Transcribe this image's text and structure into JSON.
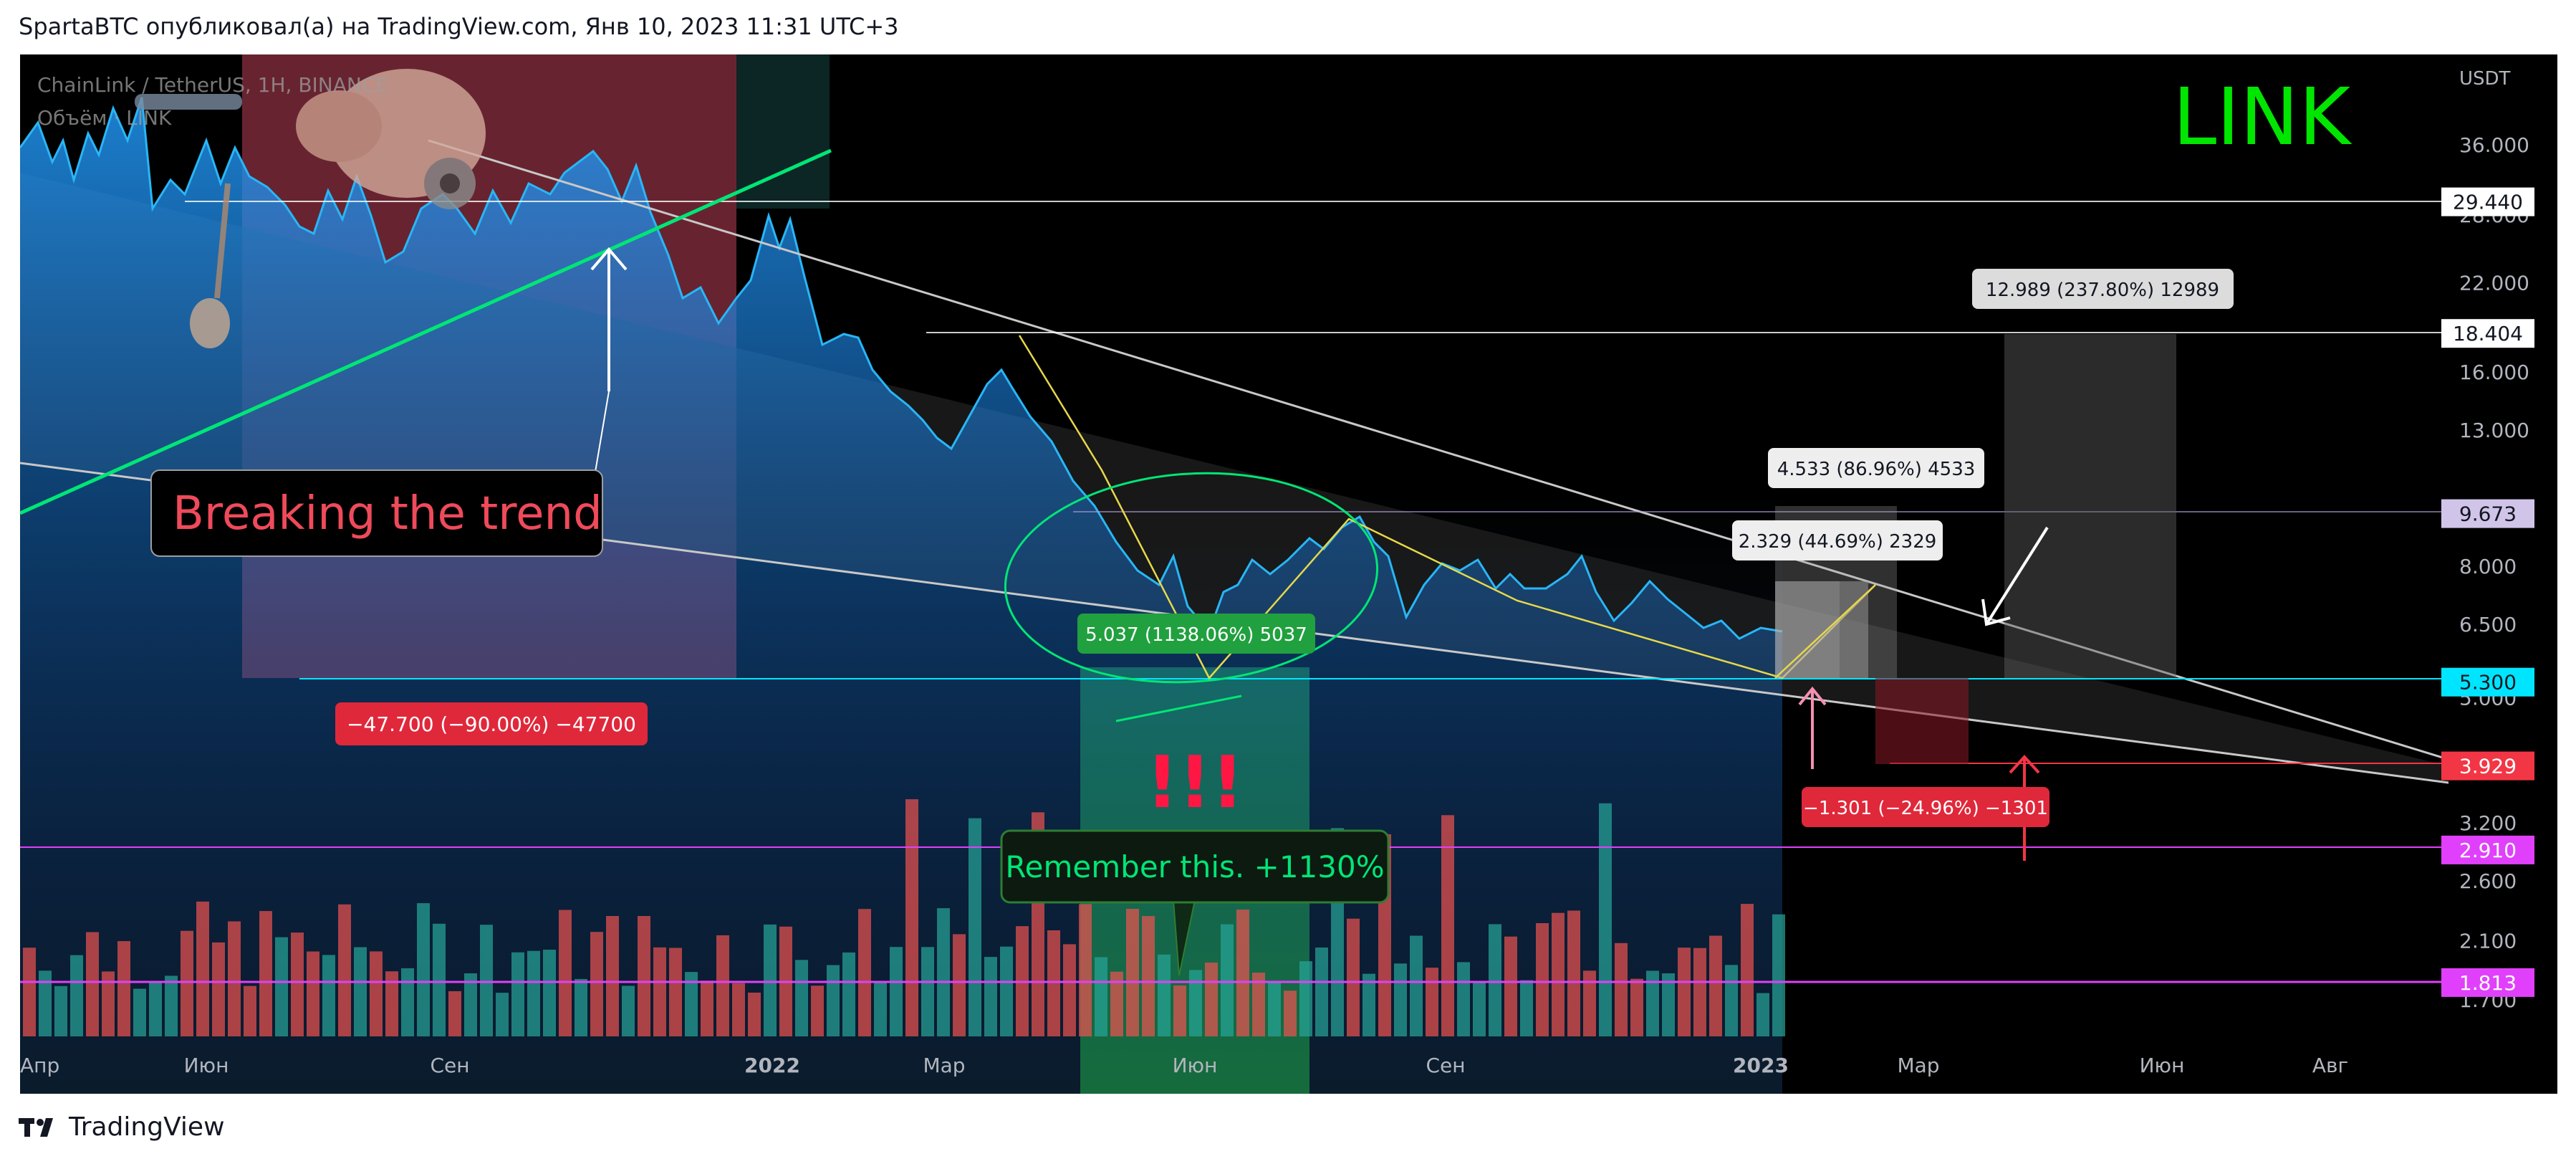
{
  "header": {
    "publisher_line": "SpartaBTC опубликовал(а) на TradingView.com, Янв 10, 2023 11:31 UTC+3"
  },
  "chart": {
    "symbol_line": "ChainLink / TetherUS, 1H, BINANCE",
    "volume_line": "Объём · LINK",
    "ticker_label": "LINK",
    "currency_label": "USDT",
    "colors": {
      "background": "#000000",
      "price_line": "#29b6f6",
      "trend_green": "#00e676",
      "accent_red": "#f23645",
      "accent_green": "#089981",
      "volume_up": "#26a69a",
      "volume_down": "#ef5350",
      "magenta": "#e040fb",
      "cyan_level": "#00e5ff",
      "ticker_green": "#00e600"
    },
    "annotations": {
      "breaking_trend": "Breaking the trend",
      "drop_label": "−47.700 (−90.00%) −47700",
      "rise_label": "5.037 (1138.06%) 5037",
      "exclamation": "!!!",
      "remember_label": "Remember this. +1130%",
      "target1_label": "2.329 (44.69%) 2329",
      "target2_label": "4.533 (86.96%) 4533",
      "target3_label": "12.989 (237.80%) 12989",
      "stop_label": "−1.301 (−24.96%) −1301"
    }
  },
  "chart_data": {
    "type": "line",
    "title": "ChainLink / TetherUS, 1H, BINANCE",
    "xlabel": "",
    "ylabel": "USDT",
    "y_scale": "log",
    "x_ticks": [
      "Апр",
      "Июн",
      "Сен",
      "2022",
      "Мар",
      "Июн",
      "Сен",
      "2023",
      "Мар",
      "Июн",
      "Авг"
    ],
    "y_ticks": [
      "36.000",
      "28.000",
      "22.000",
      "16.000",
      "13.000",
      "8.000",
      "6.500",
      "5.000",
      "3.200",
      "2.600",
      "2.100",
      "1.700"
    ],
    "price_levels": [
      {
        "value": "29.440",
        "color": "#ffffff"
      },
      {
        "value": "18.404",
        "color": "#ffffff"
      },
      {
        "value": "9.673",
        "color": "#d1c4e9"
      },
      {
        "value": "5.300",
        "color": "#00e5ff"
      },
      {
        "value": "3.929",
        "color": "#f23645"
      },
      {
        "value": "2.910",
        "color": "#e040fb"
      },
      {
        "value": "1.813",
        "color": "#e040fb"
      }
    ],
    "series": [
      {
        "x": [
          "Апр",
          "Июн",
          "Сен",
          "2022",
          "Мар",
          "Июн",
          "Сен",
          "2023"
        ],
        "values": [
          36,
          28,
          33,
          19,
          16,
          6.5,
          8,
          6
        ]
      }
    ],
    "grid": false,
    "legend": "top-left"
  }
}
